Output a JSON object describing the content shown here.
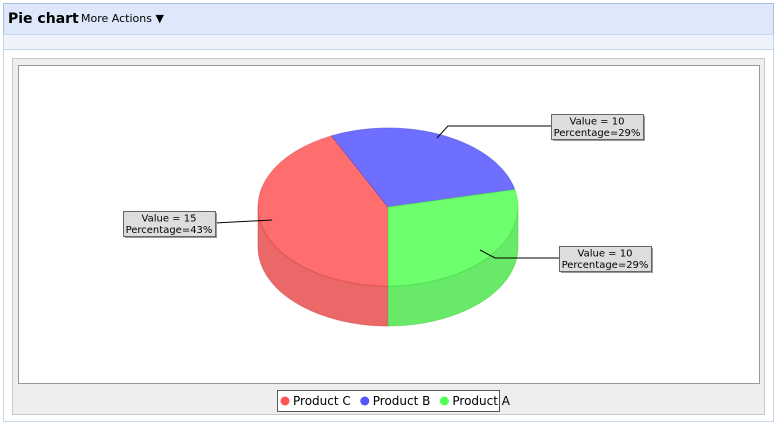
{
  "header": {
    "title": "Pie chart",
    "menu": "More Actions ▼"
  },
  "chart_data": {
    "type": "pie3d",
    "categories": [
      "Product C",
      "Product B",
      "Product A"
    ],
    "values": [
      15,
      10,
      10
    ],
    "value_labels": [
      "Value = 15",
      "Value = 10",
      "Value = 10"
    ],
    "percentages": [
      43,
      29,
      29
    ],
    "percentage_labels": [
      "Percentage=43%",
      "Percentage=29%",
      "Percentage=29%"
    ],
    "colors": [
      "#ff5555",
      "#5555ff",
      "#55ff55"
    ],
    "legend": "bottom"
  }
}
